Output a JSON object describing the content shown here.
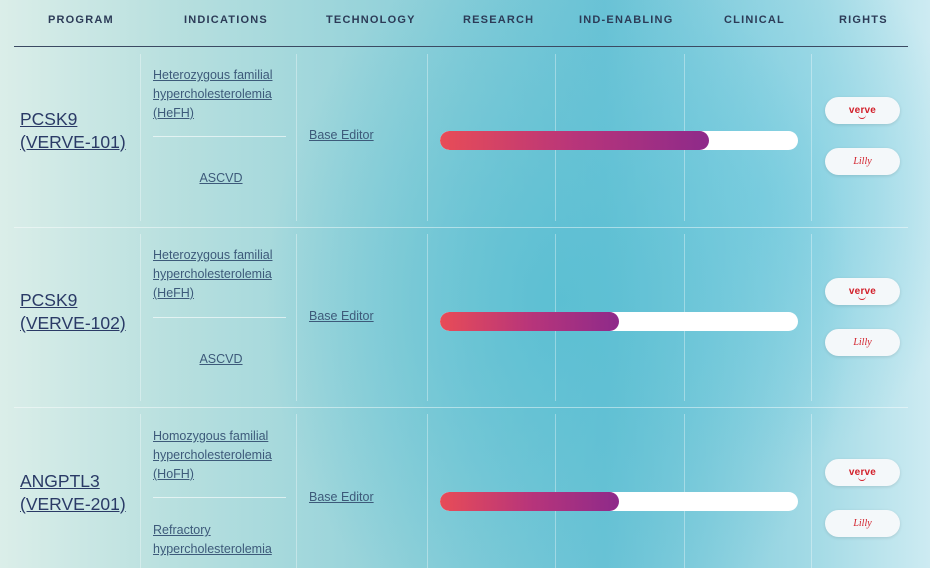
{
  "columns": [
    "PROGRAM",
    "INDICATIONS",
    "TECHNOLOGY",
    "RESEARCH",
    "IND-ENABLING",
    "CLINICAL",
    "RIGHTS"
  ],
  "rows": [
    {
      "program_line1": "PCSK9",
      "program_line2": "(VERVE-101)",
      "indication1": "Heterozygous familial hypercholesterolemia (HeFH)",
      "indication2": "ASCVD",
      "technology": "Base Editor",
      "progress": 0.75,
      "rights": [
        "verve",
        "Lilly"
      ]
    },
    {
      "program_line1": "PCSK9",
      "program_line2": "(VERVE-102)",
      "indication1": "Heterozygous familial hypercholesterolemia (HeFH)",
      "indication2": "ASCVD",
      "technology": "Base Editor",
      "progress": 0.5,
      "rights": [
        "verve",
        "Lilly"
      ]
    },
    {
      "program_line1": "ANGPTL3",
      "program_line2": "(VERVE-201)",
      "indication1": "Homozygous familial hypercholesterolemia (HoFH)",
      "indication2": "Refractory hypercholesterolemia",
      "technology": "Base Editor",
      "progress": 0.5,
      "rights": [
        "verve",
        "Lilly"
      ]
    }
  ],
  "colors": {
    "progress_start": "#e84c57",
    "progress_end": "#8e2a8a",
    "logo_red": "#d21f2a",
    "header_text": "#2c3b57"
  }
}
